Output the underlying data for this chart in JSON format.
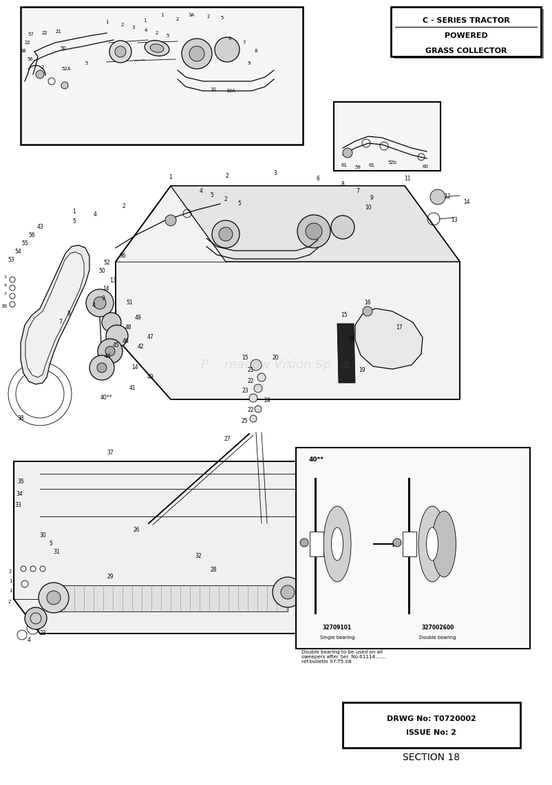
{
  "title_lines": [
    "C - SERIES TRACTOR",
    "POWERED",
    "GRASS COLLECTOR"
  ],
  "drwg_line1": "DRWG No: T0720002",
  "drwg_line2": "ISSUE No: 2",
  "section_text": "SECTION 18",
  "bg_color": "#ffffff",
  "line_color": "#000000",
  "watermark_text": "P    readow Vision Sp   s",
  "watermark_alpha": 0.18,
  "watermark_fontsize": 13
}
